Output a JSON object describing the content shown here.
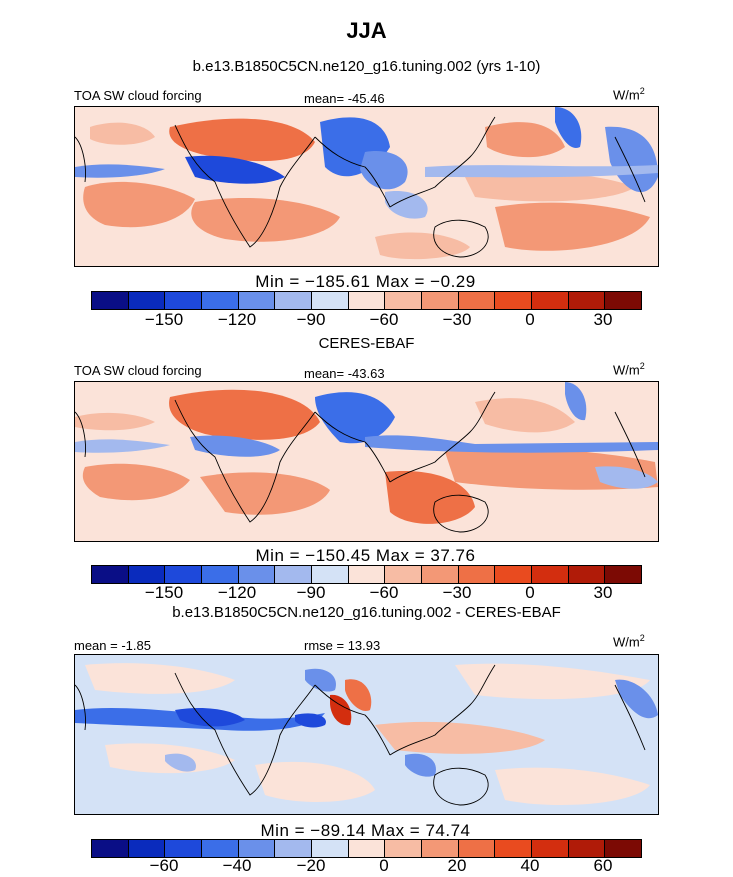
{
  "figure": {
    "title": "JJA",
    "colorbar_colors": [
      "#0a0e86",
      "#0a2bbd",
      "#1e49db",
      "#3b6ee8",
      "#6a90ea",
      "#a3b9ee",
      "#d4e2f6",
      "#fbe3d9",
      "#f7bca4",
      "#f39876",
      "#ee7046",
      "#e94b1f",
      "#d32e0f",
      "#b01b08",
      "#7c0a04"
    ]
  },
  "panels": [
    {
      "title": "b.e13.B1850C5CN.ne120_g16.tuning.002 (yrs 1-10)",
      "left_label": "TOA SW cloud forcing",
      "center_label": "mean= -45.46",
      "units": "W/m",
      "units_exp": "2",
      "minmax": "Min = −185.61 Max = −0.29",
      "ticks": [
        "−150",
        "−120",
        "−90",
        "−60",
        "−30",
        "0",
        "30"
      ],
      "stats": {
        "mean": -45.46,
        "min": -185.61,
        "max": -0.29
      }
    },
    {
      "title": "CERES-EBAF",
      "left_label": "TOA SW cloud forcing",
      "center_label": "mean= -43.63",
      "units": "W/m",
      "units_exp": "2",
      "minmax": "Min = −150.45 Max = 37.76",
      "ticks": [
        "−150",
        "−120",
        "−90",
        "−60",
        "−30",
        "0",
        "30"
      ],
      "stats": {
        "mean": -43.63,
        "min": -150.45,
        "max": 37.76
      }
    },
    {
      "title": "b.e13.B1850C5CN.ne120_g16.tuning.002 - CERES-EBAF",
      "left_label": "mean = -1.85",
      "center_label": "rmse = 13.93",
      "units": "W/m",
      "units_exp": "2",
      "minmax": "Min = −89.14 Max = 74.74",
      "ticks": [
        "−60",
        "−40",
        "−20",
        "0",
        "20",
        "40",
        "60"
      ],
      "stats": {
        "mean": -1.85,
        "rmse": 13.93,
        "min": -89.14,
        "max": 74.74
      }
    }
  ]
}
